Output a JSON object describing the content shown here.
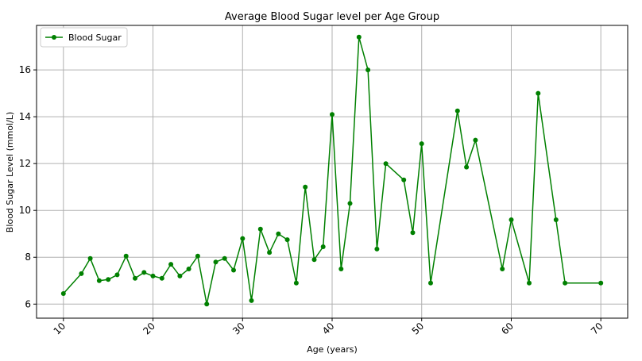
{
  "chart_data": {
    "type": "line",
    "title": "Average Blood Sugar level per Age Group",
    "xlabel": "Age (years)",
    "ylabel": "Blood Sugar Level (mmol/L)",
    "xlim": [
      7,
      73
    ],
    "ylim": [
      5.4,
      17.9
    ],
    "xticks": [
      10,
      20,
      30,
      40,
      50,
      60,
      70
    ],
    "yticks": [
      6,
      8,
      10,
      12,
      14,
      16
    ],
    "grid": true,
    "legend_position": "top-left",
    "series": [
      {
        "name": "Blood Sugar",
        "color": "#008000",
        "marker": "circle",
        "x": [
          10,
          12,
          13,
          14,
          15,
          16,
          17,
          18,
          19,
          20,
          21,
          22,
          23,
          24,
          25,
          26,
          27,
          28,
          29,
          30,
          31,
          32,
          33,
          34,
          35,
          36,
          37,
          38,
          39,
          40,
          41,
          42,
          43,
          44,
          45,
          46,
          48,
          49,
          50,
          51,
          54,
          55,
          56,
          59,
          60,
          62,
          63,
          65,
          66,
          70
        ],
        "y": [
          6.45,
          7.3,
          7.95,
          7.0,
          7.05,
          7.25,
          8.05,
          7.1,
          7.35,
          7.2,
          7.1,
          7.7,
          7.2,
          7.5,
          8.05,
          6.0,
          7.8,
          7.95,
          7.45,
          8.8,
          6.15,
          9.2,
          8.2,
          9.0,
          8.75,
          6.9,
          11.0,
          7.9,
          8.45,
          14.1,
          7.5,
          10.3,
          17.4,
          16.0,
          8.35,
          12.0,
          11.3,
          9.05,
          12.85,
          6.9,
          14.25,
          11.85,
          13.0,
          7.5,
          9.6,
          6.9,
          15.0,
          9.6,
          6.9,
          6.9
        ]
      }
    ]
  }
}
